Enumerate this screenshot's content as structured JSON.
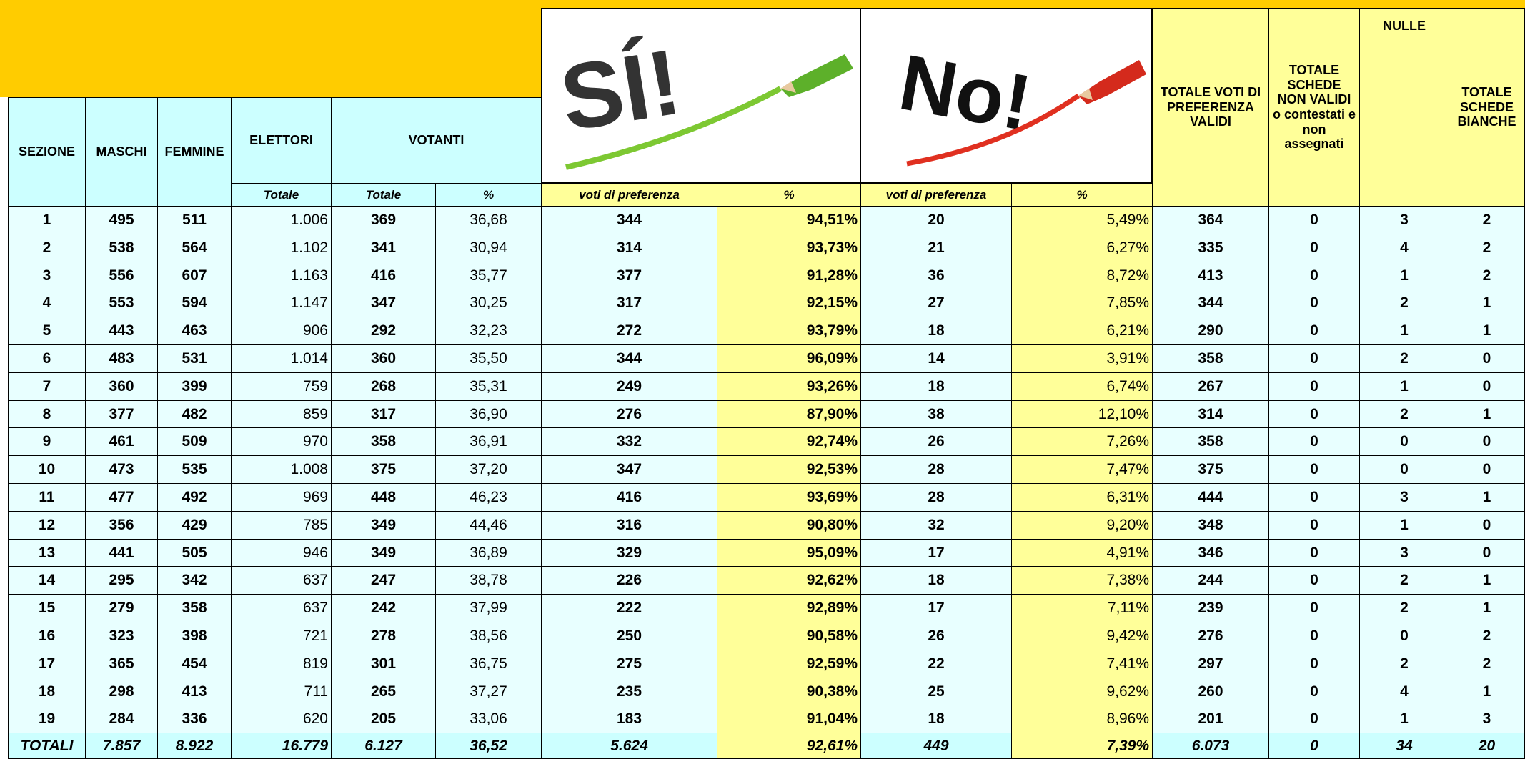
{
  "header": {
    "sezione": "SEZIONE",
    "maschi": "MASCHI",
    "femmine": "FEMMINE",
    "elettori": "ELETTORI",
    "votanti": "VOTANTI",
    "si_image": "SÍ!",
    "no_image": "No!",
    "totale_voti_validi": "TOTALE VOTI  DI PREFERENZA VALIDI",
    "schede_non_validi": "TOTALE SCHEDE NON VALIDI o contestati e non assegnati",
    "nulle": "NULLE",
    "schede_bianche": "TOTALE SCHEDE BIANCHE"
  },
  "subheader": {
    "elettori_totale": "Totale",
    "votanti_totale": "Totale",
    "votanti_pct": "%",
    "si_voti": "voti di preferenza",
    "si_pct": "%",
    "no_voti": "voti di preferenza",
    "no_pct": "%"
  },
  "rows": [
    [
      "1",
      "495",
      "511",
      "1.006",
      "369",
      "36,68",
      "344",
      "94,51%",
      "20",
      "5,49%",
      "364",
      "0",
      "3",
      "2"
    ],
    [
      "2",
      "538",
      "564",
      "1.102",
      "341",
      "30,94",
      "314",
      "93,73%",
      "21",
      "6,27%",
      "335",
      "0",
      "4",
      "2"
    ],
    [
      "3",
      "556",
      "607",
      "1.163",
      "416",
      "35,77",
      "377",
      "91,28%",
      "36",
      "8,72%",
      "413",
      "0",
      "1",
      "2"
    ],
    [
      "4",
      "553",
      "594",
      "1.147",
      "347",
      "30,25",
      "317",
      "92,15%",
      "27",
      "7,85%",
      "344",
      "0",
      "2",
      "1"
    ],
    [
      "5",
      "443",
      "463",
      "906",
      "292",
      "32,23",
      "272",
      "93,79%",
      "18",
      "6,21%",
      "290",
      "0",
      "1",
      "1"
    ],
    [
      "6",
      "483",
      "531",
      "1.014",
      "360",
      "35,50",
      "344",
      "96,09%",
      "14",
      "3,91%",
      "358",
      "0",
      "2",
      "0"
    ],
    [
      "7",
      "360",
      "399",
      "759",
      "268",
      "35,31",
      "249",
      "93,26%",
      "18",
      "6,74%",
      "267",
      "0",
      "1",
      "0"
    ],
    [
      "8",
      "377",
      "482",
      "859",
      "317",
      "36,90",
      "276",
      "87,90%",
      "38",
      "12,10%",
      "314",
      "0",
      "2",
      "1"
    ],
    [
      "9",
      "461",
      "509",
      "970",
      "358",
      "36,91",
      "332",
      "92,74%",
      "26",
      "7,26%",
      "358",
      "0",
      "0",
      "0"
    ],
    [
      "10",
      "473",
      "535",
      "1.008",
      "375",
      "37,20",
      "347",
      "92,53%",
      "28",
      "7,47%",
      "375",
      "0",
      "0",
      "0"
    ],
    [
      "11",
      "477",
      "492",
      "969",
      "448",
      "46,23",
      "416",
      "93,69%",
      "28",
      "6,31%",
      "444",
      "0",
      "3",
      "1"
    ],
    [
      "12",
      "356",
      "429",
      "785",
      "349",
      "44,46",
      "316",
      "90,80%",
      "32",
      "9,20%",
      "348",
      "0",
      "1",
      "0"
    ],
    [
      "13",
      "441",
      "505",
      "946",
      "349",
      "36,89",
      "329",
      "95,09%",
      "17",
      "4,91%",
      "346",
      "0",
      "3",
      "0"
    ],
    [
      "14",
      "295",
      "342",
      "637",
      "247",
      "38,78",
      "226",
      "92,62%",
      "18",
      "7,38%",
      "244",
      "0",
      "2",
      "1"
    ],
    [
      "15",
      "279",
      "358",
      "637",
      "242",
      "37,99",
      "222",
      "92,89%",
      "17",
      "7,11%",
      "239",
      "0",
      "2",
      "1"
    ],
    [
      "16",
      "323",
      "398",
      "721",
      "278",
      "38,56",
      "250",
      "90,58%",
      "26",
      "9,42%",
      "276",
      "0",
      "0",
      "2"
    ],
    [
      "17",
      "365",
      "454",
      "819",
      "301",
      "36,75",
      "275",
      "92,59%",
      "22",
      "7,41%",
      "297",
      "0",
      "2",
      "2"
    ],
    [
      "18",
      "298",
      "413",
      "711",
      "265",
      "37,27",
      "235",
      "90,38%",
      "25",
      "9,62%",
      "260",
      "0",
      "4",
      "1"
    ],
    [
      "19",
      "284",
      "336",
      "620",
      "205",
      "33,06",
      "183",
      "91,04%",
      "18",
      "8,96%",
      "201",
      "0",
      "1",
      "3"
    ]
  ],
  "totals": [
    "TOTALI",
    "7.857",
    "8.922",
    "16.779",
    "6.127",
    "36,52",
    "5.624",
    "92,61%",
    "449",
    "7,39%",
    "6.073",
    "0",
    "34",
    "20"
  ]
}
